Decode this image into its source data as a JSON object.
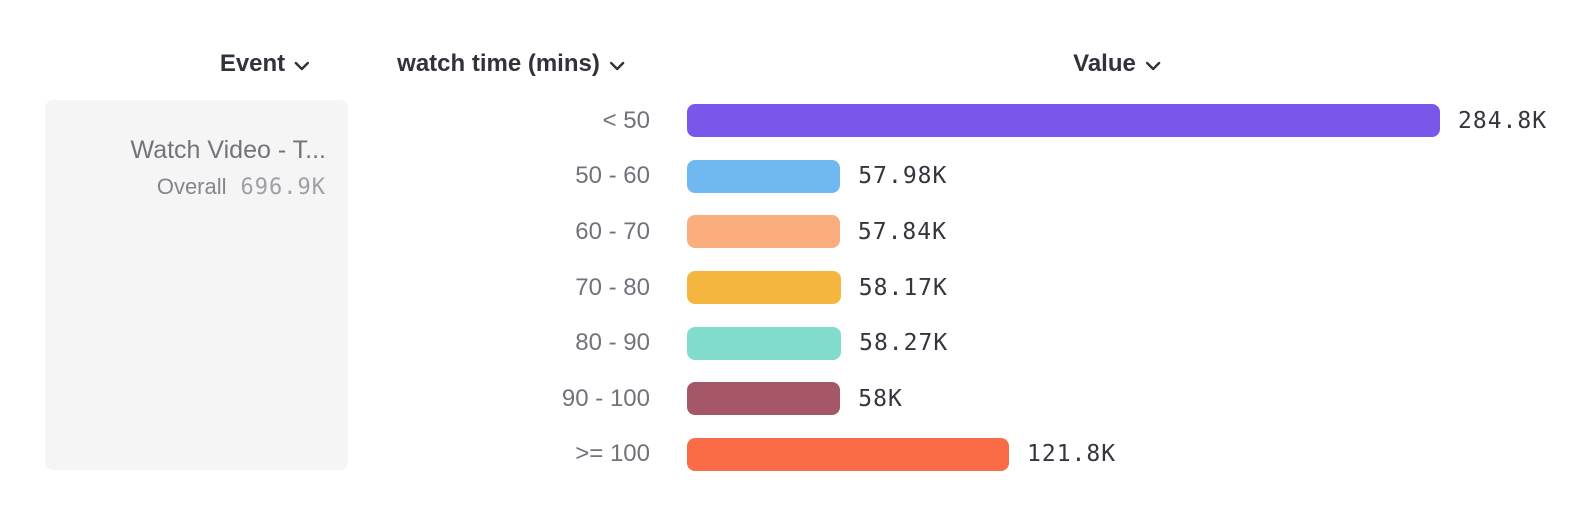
{
  "header": {
    "columns": [
      {
        "label": "Event"
      },
      {
        "label": "watch time (mins)"
      },
      {
        "label": "Value"
      }
    ]
  },
  "event_card": {
    "title": "Watch Video - T...",
    "overall_label": "Overall",
    "overall_value": "696.9K"
  },
  "chart_data": {
    "type": "bar",
    "orientation": "horizontal",
    "title": "",
    "xlabel": "Value",
    "ylabel": "watch time (mins)",
    "categories": [
      "< 50",
      "50 - 60",
      "60 - 70",
      "70 - 80",
      "80 - 90",
      "90 - 100",
      ">= 100"
    ],
    "values": [
      284800,
      57980,
      57840,
      58170,
      58270,
      58000,
      121800
    ],
    "value_labels": [
      "284.8K",
      "57.98K",
      "57.84K",
      "58.17K",
      "58.27K",
      "58K",
      "121.8K"
    ],
    "colors": [
      "#7957EB",
      "#70B9F0",
      "#FAAE7D",
      "#F4B63E",
      "#81DCCD",
      "#A55767",
      "#FA6B48"
    ],
    "series_name": "Watch Video - T...",
    "overall_total": "696.9K",
    "xlim": [
      0,
      284800
    ],
    "grid": false,
    "legend": "none"
  },
  "icons": {
    "chevron_down": "chevron-down-icon"
  }
}
